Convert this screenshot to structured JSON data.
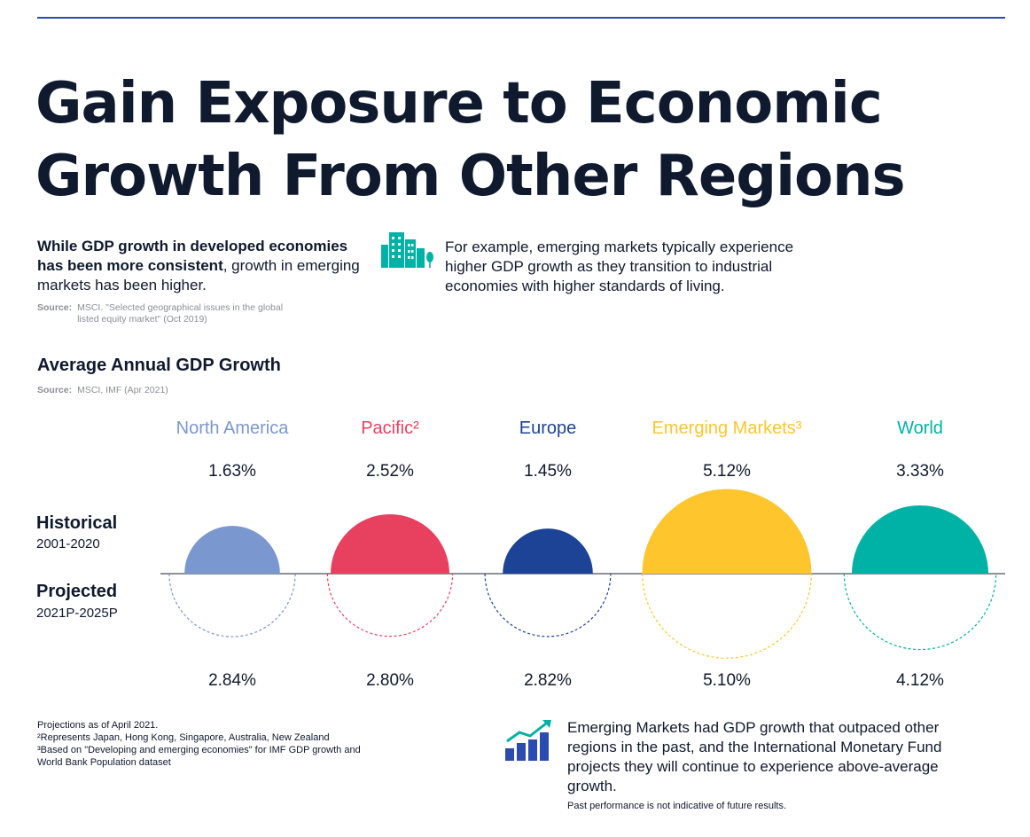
{
  "header": {
    "title_line1": "Gain Exposure to Economic",
    "title_line2": "Growth From Other Regions"
  },
  "intro": {
    "left_bold": "While GDP growth in developed economies has been more consistent",
    "left_rest": ", growth in emerging markets has been higher.",
    "source_label": "Source:",
    "source_text": "MSCI. \"Selected geographical issues in the global listed equity market\" (Oct 2019)",
    "right_text": "For example, emerging markets typically experience higher GDP growth as they transition to industrial economies with higher standards of living.",
    "city_icon": "city-buildings-icon"
  },
  "chart_section": {
    "title": "Average Annual GDP Growth",
    "source_label": "Source:",
    "source_text": "MSCI, IMF (Apr 2021)",
    "historical_label": "Historical",
    "historical_years": "2001-2020",
    "projected_label": "Projected",
    "projected_years": "2021P-2025P"
  },
  "chart_data": {
    "type": "semicircle",
    "title": "Average Annual GDP Growth",
    "categories": [
      "North America",
      "Pacific²",
      "Europe",
      "Emerging Markets³",
      "World"
    ],
    "colors": [
      "#7b97cf",
      "#e8405f",
      "#1c4396",
      "#fec52d",
      "#00b2a5"
    ],
    "series": [
      {
        "name": "Historical",
        "values": [
          1.63,
          2.52,
          1.45,
          5.12,
          3.33
        ],
        "labels": [
          "1.63%",
          "2.52%",
          "1.45%",
          "5.12%",
          "3.33%"
        ]
      },
      {
        "name": "Projected",
        "values": [
          2.84,
          2.8,
          2.82,
          5.1,
          4.12
        ],
        "labels": [
          "2.84%",
          "2.80%",
          "2.82%",
          "5.10%",
          "4.12%"
        ]
      }
    ]
  },
  "notes": {
    "line1": "Projections as of April 2021.",
    "line2": "²Represents Japan, Hong Kong, Singapore, Australia, New Zealand",
    "line3": "³Based on \"Developing and emerging economies\" for IMF GDP growth and World Bank Population dataset"
  },
  "callout": {
    "text": "Emerging Markets had GDP growth that outpaced other regions in the past, and the International Monetary Fund projects they will continue to experience above-average growth.",
    "disclaimer": "Past performance is not indicative of future results.",
    "trend_icon": "growth-chart-icon"
  }
}
